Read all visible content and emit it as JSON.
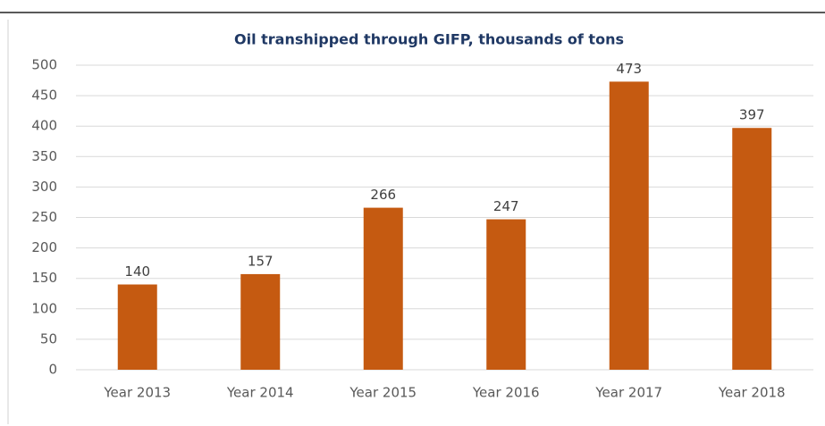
{
  "chart_data": {
    "type": "bar",
    "title": "Oil transhipped through GIFP, thousands of tons",
    "categories": [
      "Year 2013",
      "Year 2014",
      "Year 2015",
      "Year 2016",
      "Year 2017",
      "Year 2018"
    ],
    "values": [
      140,
      157,
      266,
      247,
      473,
      397
    ],
    "color": "#c55a11",
    "ylim": [
      0,
      500
    ],
    "yticks": [
      0,
      50,
      100,
      150,
      200,
      250,
      300,
      350,
      400,
      450,
      500
    ],
    "grid": true
  }
}
